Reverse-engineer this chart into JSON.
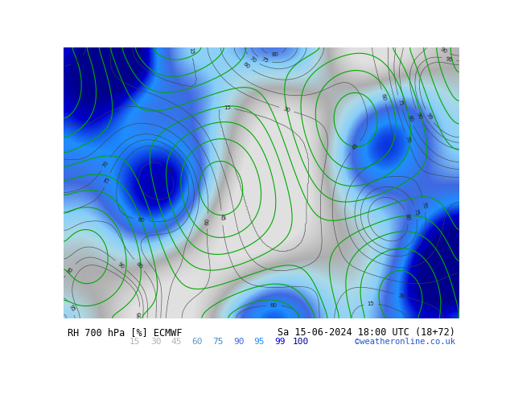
{
  "title_left": "RH 700 hPa [%] ECMWF",
  "title_right": "Sa 15-06-2024 18:00 UTC (18+72)",
  "credit": "©weatheronline.co.uk",
  "colorbar_values": [
    15,
    30,
    45,
    60,
    75,
    90,
    95,
    99,
    100
  ],
  "colorbar_colors": [
    "#e0e0e0",
    "#c8c8c8",
    "#aaaaaa",
    "#add8e6",
    "#87ceeb",
    "#4169e1",
    "#1e90ff",
    "#0000cd",
    "#00008b"
  ],
  "colorbar_text_colors": [
    "#b0b0b0",
    "#b0b0b0",
    "#b0b0b0",
    "#6699cc",
    "#4488bb",
    "#4169e1",
    "#1e90ff",
    "#0000cd",
    "#00008b"
  ],
  "bg_color": "#ffffff",
  "footer_bg": "#f0f0f0",
  "map_image_placeholder": true,
  "fig_width": 6.34,
  "fig_height": 4.9,
  "dpi": 100
}
